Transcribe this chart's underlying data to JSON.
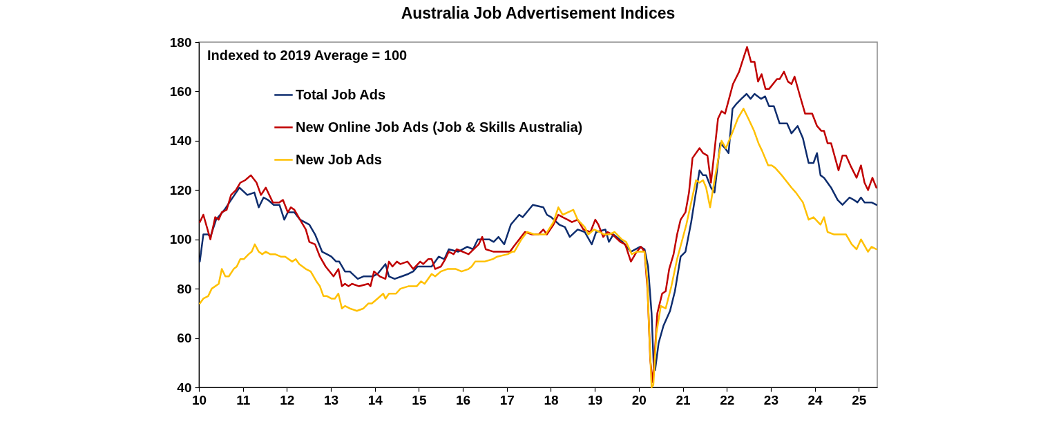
{
  "chart_data": {
    "type": "line",
    "title": "Australia Job Advertisement Indices",
    "annotations": [
      "Indexed to 2019 Average = 100"
    ],
    "xlim": [
      10,
      25.42
    ],
    "xticks": [
      10,
      11,
      12,
      13,
      14,
      15,
      16,
      17,
      18,
      19,
      20,
      21,
      22,
      23,
      24,
      25
    ],
    "ylim": [
      40,
      180
    ],
    "yticks": [
      40,
      60,
      80,
      100,
      120,
      140,
      160,
      180
    ],
    "grid": false,
    "legend": "top left",
    "series": [
      {
        "name": "Total Job Ads",
        "color": "#0e2d6e",
        "x": [
          10.02,
          10.1,
          10.21,
          10.26,
          10.39,
          10.58,
          10.73,
          10.92,
          11.1,
          11.26,
          11.36,
          11.47,
          11.57,
          11.7,
          11.83,
          11.94,
          12.02,
          12.17,
          12.3,
          12.51,
          12.64,
          12.8,
          12.91,
          13.01,
          13.12,
          13.19,
          13.32,
          13.43,
          13.61,
          13.74,
          13.95,
          14.06,
          14.24,
          14.32,
          14.45,
          14.61,
          14.76,
          14.87,
          14.97,
          15.29,
          15.45,
          15.58,
          15.68,
          15.89,
          16.1,
          16.23,
          16.34,
          16.6,
          16.7,
          16.81,
          16.94,
          17.09,
          17.28,
          17.36,
          17.59,
          17.83,
          17.91,
          18.01,
          18.19,
          18.32,
          18.43,
          18.61,
          18.77,
          18.93,
          19.03,
          19.24,
          19.32,
          19.42,
          19.63,
          19.82,
          20.03,
          20.13,
          20.21,
          20.29,
          20.34,
          20.37,
          20.45,
          20.56,
          20.71,
          20.82,
          20.95,
          21.06,
          21.19,
          21.27,
          21.38,
          21.46,
          21.53,
          21.64,
          21.72,
          21.85,
          21.96,
          22.04,
          22.13,
          22.22,
          22.33,
          22.45,
          22.54,
          22.63,
          22.78,
          22.87,
          22.96,
          23.07,
          23.2,
          23.31,
          23.37,
          23.47,
          23.61,
          23.73,
          23.86,
          23.97,
          24.05,
          24.13,
          24.21,
          24.37,
          24.52,
          24.63,
          24.79,
          24.89,
          24.97,
          25.05,
          25.13,
          25.29,
          25.4
        ],
        "values": [
          91,
          102,
          102,
          101,
          108,
          112,
          116,
          121,
          118,
          119,
          113,
          117,
          116,
          114,
          114,
          108,
          111,
          111,
          108,
          106,
          102,
          95,
          94,
          93,
          91,
          91,
          87,
          87,
          84,
          85,
          85,
          86,
          90,
          85,
          84,
          85,
          86,
          87,
          89,
          89,
          93,
          92,
          96,
          95,
          97,
          96,
          100,
          100,
          99,
          101,
          98,
          106,
          110,
          109,
          114,
          113,
          110,
          109,
          106,
          105,
          101,
          104,
          103,
          98,
          103,
          104,
          99,
          102,
          99,
          95,
          97,
          96,
          89,
          70,
          48,
          47,
          58,
          65,
          71,
          79,
          93,
          95,
          107,
          116,
          128,
          126,
          126,
          121,
          119,
          139,
          137,
          135,
          153,
          155,
          157,
          159,
          157,
          159,
          157,
          158,
          154,
          154,
          147,
          147,
          147,
          143,
          146,
          141,
          131,
          131,
          135,
          126,
          125,
          121,
          116,
          114,
          117,
          116,
          115,
          117,
          115,
          115,
          114
        ]
      },
      {
        "name": "New Online Job Ads (Job & Skills Australia)",
        "color": "#c00000",
        "x": [
          10.02,
          10.1,
          10.26,
          10.37,
          10.45,
          10.52,
          10.63,
          10.73,
          10.84,
          10.94,
          11.05,
          11.18,
          11.31,
          11.41,
          11.52,
          11.68,
          11.83,
          11.91,
          12.02,
          12.09,
          12.17,
          12.33,
          12.43,
          12.51,
          12.64,
          12.75,
          12.88,
          13.06,
          13.17,
          13.25,
          13.32,
          13.4,
          13.48,
          13.64,
          13.85,
          13.9,
          13.98,
          14.11,
          14.24,
          14.32,
          14.4,
          14.5,
          14.58,
          14.74,
          14.87,
          15.03,
          15.1,
          15.21,
          15.29,
          15.37,
          15.5,
          15.6,
          15.68,
          15.79,
          15.86,
          16.13,
          16.36,
          16.44,
          16.52,
          16.7,
          16.81,
          16.94,
          17.07,
          17.15,
          17.28,
          17.41,
          17.57,
          17.72,
          17.83,
          17.91,
          18.06,
          18.17,
          18.27,
          18.38,
          18.48,
          18.61,
          18.74,
          18.9,
          19.01,
          19.08,
          19.19,
          19.29,
          19.4,
          19.58,
          19.69,
          19.82,
          19.95,
          20.05,
          20.13,
          20.2,
          20.26,
          20.32,
          20.42,
          20.53,
          20.61,
          20.69,
          20.79,
          20.87,
          20.95,
          21.06,
          21.14,
          21.22,
          21.38,
          21.46,
          21.56,
          21.64,
          21.69,
          21.8,
          21.88,
          21.96,
          22.14,
          22.28,
          22.35,
          22.46,
          22.55,
          22.63,
          22.71,
          22.79,
          22.88,
          22.96,
          23.14,
          23.2,
          23.3,
          23.39,
          23.47,
          23.54,
          23.65,
          23.78,
          23.94,
          24.05,
          24.15,
          24.21,
          24.29,
          24.37,
          24.54,
          24.63,
          24.71,
          24.81,
          24.95,
          25.05,
          25.13,
          25.21,
          25.31,
          25.4
        ],
        "values": [
          107,
          110,
          100,
          109,
          108,
          111,
          112,
          118,
          120,
          123,
          124,
          126,
          123,
          118,
          121,
          115,
          115,
          116,
          111,
          113,
          112,
          107,
          104,
          99,
          98,
          93,
          89,
          85,
          88,
          81,
          82,
          81,
          82,
          81,
          82,
          81,
          87,
          85,
          84,
          91,
          89,
          91,
          90,
          91,
          88,
          91,
          90,
          92,
          92,
          88,
          89,
          92,
          95,
          94,
          96,
          94,
          98,
          101,
          96,
          95,
          95,
          95,
          95,
          97,
          100,
          103,
          102,
          102,
          104,
          102,
          106,
          110,
          109,
          108,
          107,
          108,
          104,
          103,
          108,
          106,
          101,
          103,
          102,
          99,
          98,
          91,
          95,
          97,
          95,
          79,
          51,
          42,
          70,
          78,
          79,
          88,
          94,
          102,
          108,
          111,
          119,
          133,
          137,
          135,
          134,
          123,
          131,
          149,
          152,
          151,
          163,
          168,
          172,
          178,
          172,
          172,
          164,
          167,
          161,
          161,
          165,
          165,
          168,
          164,
          163,
          166,
          159,
          151,
          151,
          146,
          144,
          144,
          139,
          139,
          128,
          134,
          134,
          130,
          125,
          130,
          123,
          120,
          125,
          121
        ]
      },
      {
        "name": "New Job Ads",
        "color": "#ffc000",
        "x": [
          10.02,
          10.1,
          10.21,
          10.29,
          10.45,
          10.52,
          10.6,
          10.68,
          10.79,
          10.86,
          10.94,
          11.02,
          11.13,
          11.2,
          11.27,
          11.36,
          11.44,
          11.52,
          11.62,
          11.73,
          11.86,
          11.96,
          12.12,
          12.2,
          12.28,
          12.43,
          12.54,
          12.67,
          12.75,
          12.83,
          12.91,
          13.01,
          13.09,
          13.17,
          13.25,
          13.32,
          13.43,
          13.59,
          13.74,
          13.85,
          13.93,
          14.06,
          14.19,
          14.24,
          14.32,
          14.48,
          14.58,
          14.76,
          14.95,
          15.05,
          15.13,
          15.29,
          15.37,
          15.5,
          15.65,
          15.84,
          15.97,
          16.13,
          16.2,
          16.28,
          16.49,
          16.68,
          16.78,
          17.02,
          17.12,
          17.17,
          17.33,
          17.46,
          17.64,
          17.88,
          18.06,
          18.17,
          18.27,
          18.51,
          18.61,
          18.77,
          18.85,
          18.98,
          19.11,
          19.21,
          19.32,
          19.45,
          19.61,
          19.71,
          19.84,
          19.95,
          20.13,
          20.19,
          20.24,
          20.29,
          20.33,
          20.4,
          20.5,
          20.61,
          20.74,
          20.87,
          21.08,
          21.19,
          21.3,
          21.38,
          21.46,
          21.53,
          21.62,
          21.72,
          21.88,
          21.98,
          22.12,
          22.25,
          22.38,
          22.49,
          22.62,
          22.72,
          22.8,
          22.94,
          23.02,
          23.1,
          23.25,
          23.47,
          23.57,
          23.73,
          23.86,
          23.97,
          24.13,
          24.21,
          24.29,
          24.44,
          24.58,
          24.71,
          24.84,
          24.95,
          25.05,
          25.21,
          25.29,
          25.4
        ],
        "values": [
          74,
          76,
          77,
          80,
          82,
          88,
          85,
          85,
          88,
          89,
          92,
          92,
          94,
          95,
          98,
          95,
          94,
          95,
          94,
          94,
          93,
          93,
          91,
          92,
          90,
          88,
          87,
          83,
          81,
          77,
          77,
          76,
          76,
          78,
          72,
          73,
          72,
          71,
          72,
          74,
          74,
          76,
          78,
          76,
          78,
          78,
          80,
          81,
          81,
          83,
          82,
          86,
          85,
          87,
          88,
          88,
          87,
          88,
          89,
          91,
          91,
          92,
          93,
          94,
          95,
          95,
          100,
          103,
          102,
          102,
          107,
          113,
          110,
          112,
          108,
          105,
          102,
          104,
          103,
          102,
          102,
          103,
          100,
          99,
          94,
          95,
          95,
          84,
          61,
          40,
          41,
          62,
          73,
          72,
          81,
          92,
          106,
          115,
          124,
          123,
          124,
          121,
          113,
          124,
          140,
          137,
          143,
          149,
          153,
          149,
          144,
          139,
          136,
          130,
          130,
          129,
          126,
          121,
          119,
          115,
          108,
          109,
          106,
          109,
          103,
          102,
          102,
          102,
          98,
          96,
          100,
          95,
          97,
          96
        ]
      }
    ]
  }
}
